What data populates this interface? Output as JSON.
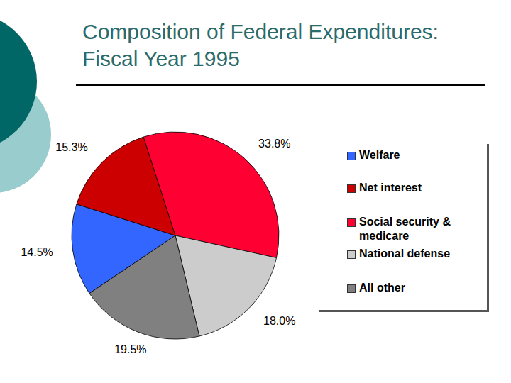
{
  "chart_data": {
    "type": "pie",
    "title": "Composition of Federal Expenditures: Fiscal Year 1995",
    "categories": [
      "Welfare",
      "Net interest",
      "Social security & medicare",
      "National defense",
      "All other"
    ],
    "values": [
      14.5,
      15.3,
      33.8,
      18.0,
      19.5
    ],
    "value_labels": [
      "14.5%",
      "15.3%",
      "33.8%",
      "18.0%",
      "19.5%"
    ],
    "colors": [
      "#3366ff",
      "#cc0000",
      "#ff0033",
      "#cccccc",
      "#808080"
    ],
    "data_labels": true,
    "legend": "right"
  }
}
